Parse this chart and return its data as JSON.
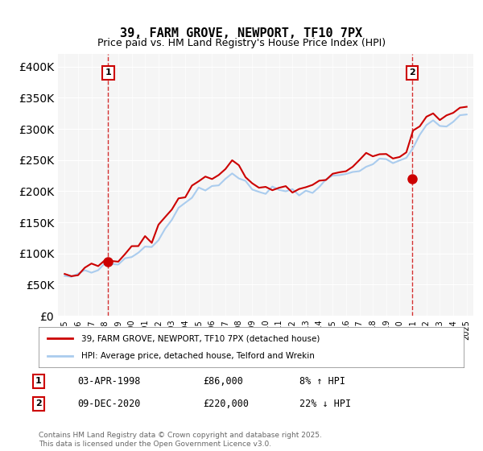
{
  "title": "39, FARM GROVE, NEWPORT, TF10 7PX",
  "subtitle": "Price paid vs. HM Land Registry's House Price Index (HPI)",
  "legend_line1": "39, FARM GROVE, NEWPORT, TF10 7PX (detached house)",
  "legend_line2": "HPI: Average price, detached house, Telford and Wrekin",
  "note1_label": "1",
  "note1_date": "03-APR-1998",
  "note1_price": "£86,000",
  "note1_hpi": "8% ↑ HPI",
  "note2_label": "2",
  "note2_date": "09-DEC-2020",
  "note2_price": "£220,000",
  "note2_hpi": "22% ↓ HPI",
  "copyright": "Contains HM Land Registry data © Crown copyright and database right 2025.\nThis data is licensed under the Open Government Licence v3.0.",
  "red_color": "#cc0000",
  "blue_color": "#aaccee",
  "background_color": "#f8f8f8",
  "ylim": [
    0,
    420000
  ],
  "yticks": [
    0,
    50000,
    100000,
    150000,
    200000,
    250000,
    300000,
    350000,
    400000
  ],
  "sale1_year": 1998.25,
  "sale1_price": 86000,
  "sale2_year": 2020.93,
  "sale2_price": 220000
}
